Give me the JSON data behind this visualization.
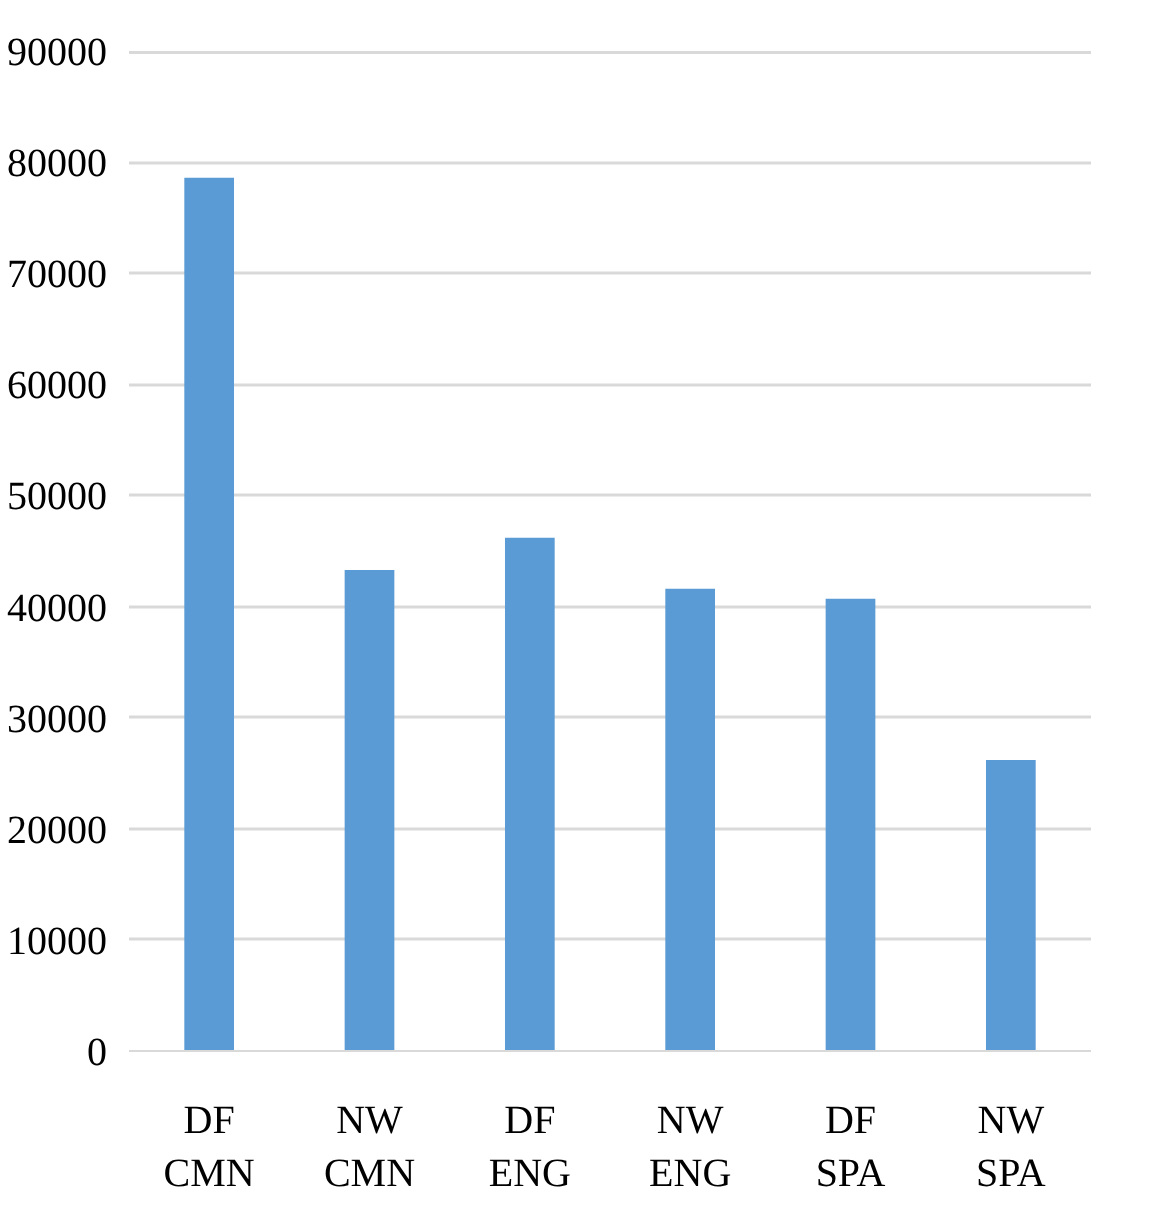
{
  "chart_data": {
    "type": "bar",
    "categories": [
      "DF CMN",
      "NW CMN",
      "DF ENG",
      "NW ENG",
      "DF SPA",
      "NW SPA"
    ],
    "values": [
      78600,
      43300,
      46200,
      41600,
      40700,
      26200
    ],
    "color": "#5b9bd5",
    "ylim": [
      0,
      90000
    ],
    "yticks": [
      0,
      10000,
      20000,
      30000,
      40000,
      50000,
      60000,
      70000,
      80000,
      90000
    ],
    "grid": "y"
  }
}
